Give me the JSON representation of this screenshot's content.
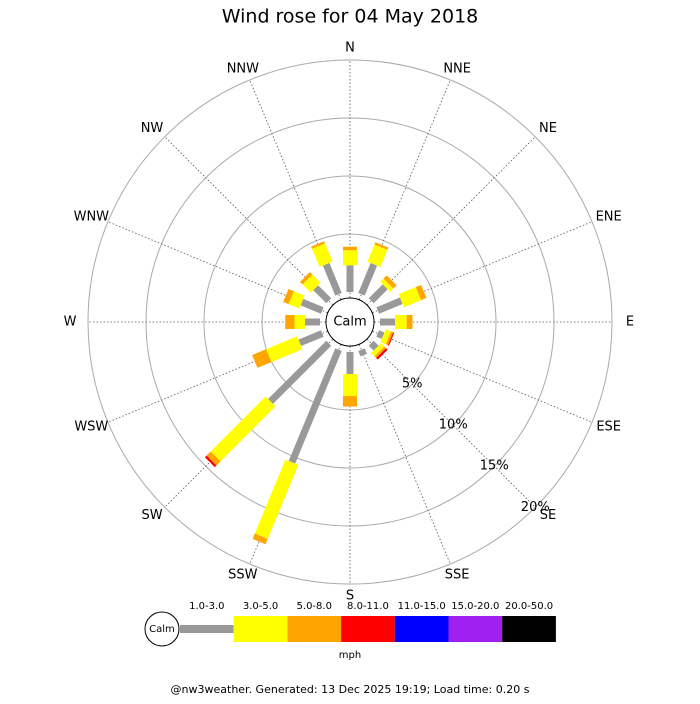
{
  "chart_data": {
    "type": "wind_rose",
    "title": "Wind rose for 04 May 2018",
    "categories": [
      "N",
      "NNE",
      "NE",
      "ENE",
      "E",
      "ESE",
      "SE",
      "SSE",
      "S",
      "SSW",
      "SW",
      "WSW",
      "W",
      "WNW",
      "NW",
      "NNW"
    ],
    "calm_label": "Calm",
    "rlim": [
      0,
      20
    ],
    "rticks": [
      {
        "value": 5,
        "label": "5%"
      },
      {
        "value": 10,
        "label": "10%"
      },
      {
        "value": 15,
        "label": "15%"
      },
      {
        "value": 20,
        "label": "20%"
      }
    ],
    "unit": "mph",
    "series": [
      {
        "name": "1.0-3.0",
        "color": "#999999",
        "values": [
          2.3,
          2.8,
          1.7,
          2.2,
          1.3,
          0.5,
          0.6,
          0.5,
          1.9,
          10.5,
          7.1,
          2.1,
          1.3,
          1.9,
          1.6,
          2.8
        ]
      },
      {
        "name": "3.0-5.0",
        "color": "#ffff00",
        "values": [
          1.3,
          1.6,
          0.4,
          1.6,
          1.0,
          0.5,
          0.4,
          0,
          1.9,
          6.9,
          6.7,
          2.9,
          0.9,
          1.0,
          1.0,
          1.7
        ]
      },
      {
        "name": "5.0-8.0",
        "color": "#ffa500",
        "values": [
          0.3,
          0.2,
          0.4,
          0.5,
          0.5,
          0.2,
          0.2,
          0,
          0.9,
          0.5,
          0.5,
          1.3,
          0.8,
          0.5,
          0.3,
          0.2
        ]
      },
      {
        "name": "8.0-11.0",
        "color": "#ff0000",
        "values": [
          0,
          0,
          0,
          0,
          0,
          0.1,
          0.2,
          0,
          0,
          0,
          0.2,
          0,
          0,
          0,
          0,
          0
        ]
      },
      {
        "name": "11.0-15.0",
        "color": "#0000ff",
        "values": [
          0,
          0,
          0,
          0,
          0,
          0,
          0,
          0,
          0,
          0,
          0,
          0,
          0,
          0,
          0,
          0
        ]
      },
      {
        "name": "15.0-20.0",
        "color": "#a020f0",
        "values": [
          0,
          0,
          0,
          0,
          0,
          0,
          0,
          0,
          0,
          0,
          0,
          0,
          0,
          0,
          0,
          0
        ]
      },
      {
        "name": "20.0-50.0",
        "color": "#000000",
        "values": [
          0,
          0,
          0,
          0,
          0,
          0,
          0,
          0,
          0,
          0,
          0,
          0,
          0,
          0,
          0,
          0
        ]
      }
    ],
    "footer": "@nw3weather. Generated: 13 Dec 2025 19:19; Load time: 0.20 s"
  }
}
